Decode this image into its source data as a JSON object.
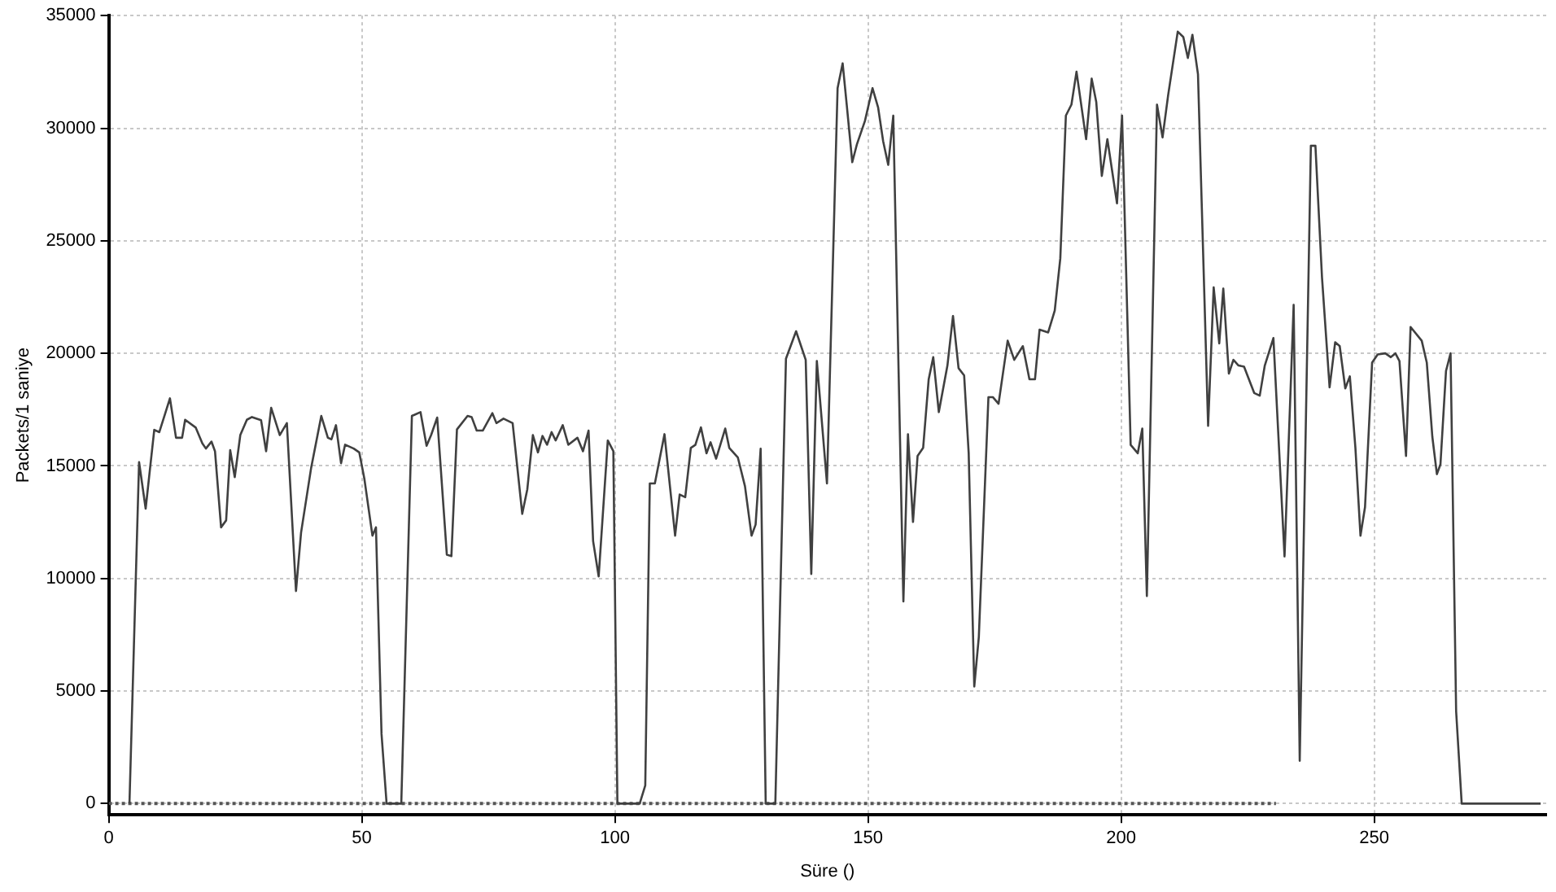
{
  "chart_data": {
    "type": "line",
    "xlabel": "Süre ()",
    "ylabel": "Packets/1 saniye",
    "xlim": [
      0,
      284
    ],
    "ylim": [
      -500,
      35000
    ],
    "xticks": [
      0,
      50,
      100,
      150,
      200,
      250
    ],
    "yticks": [
      0,
      5000,
      10000,
      15000,
      20000,
      25000,
      30000,
      35000
    ],
    "grid": true,
    "legend": false,
    "marker": "none",
    "series": [
      {
        "color": "#404040",
        "line_style": "solid",
        "x": [
          4.1,
          6.0,
          7.3,
          9.0,
          10.0,
          12.1,
          13.3,
          14.5,
          15.1,
          17.2,
          18.5,
          19.2,
          20.3,
          21.0,
          22.2,
          23.2,
          24.0,
          24.9,
          26.0,
          27.3,
          28.3,
          30.1,
          31.1,
          32.1,
          33.8,
          35.2,
          37.0,
          38.0,
          40.0,
          42.0,
          43.3,
          44.0,
          44.9,
          45.9,
          46.7,
          48.4,
          49.5,
          50.5,
          52.1,
          52.8,
          53.9,
          54.9,
          57.8,
          59.9,
          61.6,
          62.8,
          63.7,
          64.9,
          66.8,
          67.7,
          68.8,
          70.9,
          71.7,
          72.7,
          73.9,
          75.8,
          76.6,
          78.0,
          79.8,
          81.7,
          82.7,
          83.8,
          84.8,
          85.7,
          86.6,
          87.5,
          88.3,
          89.7,
          90.8,
          92.6,
          93.7,
          94.8,
          95.7,
          96.8,
          98.6,
          99.7,
          100.5,
          104.9,
          106.0,
          106.9,
          107.9,
          109.8,
          111.9,
          112.8,
          113.9,
          115.0,
          115.9,
          117.0,
          118.1,
          118.9,
          120.0,
          121.8,
          122.6,
          124.3,
          125.7,
          127.0,
          127.8,
          128.8,
          129.8,
          131.7,
          133.8,
          135.8,
          137.7,
          138.8,
          139.9,
          141.9,
          144.0,
          145.0,
          145.8,
          146.9,
          147.8,
          149.4,
          150.9,
          152.0,
          153.0,
          154.0,
          155.0,
          157.0,
          157.9,
          158.9,
          159.8,
          160.9,
          162.0,
          162.9,
          164.0,
          165.7,
          166.8,
          167.9,
          169.0,
          169.9,
          171.0,
          171.9,
          173.8,
          174.7,
          175.8,
          177.6,
          178.9,
          180.6,
          181.9,
          183.0,
          183.9,
          185.6,
          186.9,
          188.0,
          189.1,
          190.2,
          191.2,
          193.1,
          194.2,
          195.1,
          196.2,
          197.3,
          199.2,
          200.2,
          201.9,
          203.3,
          204.2,
          205.1,
          207.1,
          208.2,
          209.3,
          211.2,
          212.3,
          213.2,
          214.1,
          215.2,
          217.2,
          218.3,
          219.4,
          220.2,
          221.3,
          222.2,
          223.2,
          224.3,
          226.3,
          227.4,
          228.4,
          230.1,
          232.3,
          234.1,
          235.3,
          237.5,
          238.4,
          239.7,
          241.2,
          242.3,
          243.2,
          244.3,
          245.2,
          246.3,
          247.3,
          248.2,
          249.6,
          250.7,
          252.2,
          253.3,
          254.2,
          255.0,
          256.3,
          257.2,
          259.4,
          260.4,
          261.5,
          262.4,
          263.1,
          264.2,
          265.1,
          266.2,
          267.3,
          282.9
        ],
        "values": [
          0,
          15170,
          13100,
          16600,
          16500,
          18000,
          16250,
          16250,
          17050,
          16700,
          16000,
          15770,
          16080,
          15650,
          12270,
          12580,
          15700,
          14500,
          16370,
          17050,
          17170,
          17030,
          15650,
          17580,
          16370,
          16900,
          9440,
          12030,
          14920,
          17220,
          16250,
          16180,
          16810,
          15120,
          15940,
          15770,
          15600,
          14440,
          11900,
          12270,
          3090,
          0,
          0,
          17220,
          17390,
          15890,
          16370,
          17150,
          11060,
          10990,
          16620,
          17220,
          17170,
          16570,
          16570,
          17340,
          16900,
          17100,
          16900,
          12870,
          13960,
          16370,
          15600,
          16330,
          15940,
          16500,
          16130,
          16810,
          15940,
          16250,
          15650,
          16570,
          11660,
          10090,
          16130,
          15650,
          0,
          0,
          800,
          14220,
          14220,
          16410,
          11900,
          13730,
          13610,
          15800,
          15930,
          16710,
          15560,
          16050,
          15320,
          16660,
          15800,
          15370,
          14100,
          11900,
          12390,
          15760,
          0,
          0,
          19760,
          20980,
          19710,
          10200,
          19660,
          14220,
          31780,
          32880,
          31050,
          28490,
          29270,
          30320,
          31780,
          30930,
          29420,
          28370,
          30560,
          8980,
          16410,
          12510,
          15440,
          15800,
          18850,
          19830,
          17390,
          19460,
          21660,
          19340,
          19020,
          15560,
          5200,
          7390,
          18050,
          18050,
          17760,
          20560,
          19710,
          20320,
          18850,
          18850,
          21050,
          20930,
          21900,
          24220,
          30560,
          31050,
          32510,
          29510,
          32200,
          31170,
          27880,
          29510,
          26660,
          30560,
          15930,
          15560,
          16660,
          9220,
          31050,
          29590,
          31460,
          34290,
          34050,
          33120,
          34150,
          32390,
          16780,
          22930,
          20440,
          22880,
          19100,
          19710,
          19460,
          19410,
          18240,
          18120,
          19460,
          20680,
          10980,
          22150,
          1900,
          29220,
          29220,
          23370,
          18490,
          20490,
          20320,
          18440,
          18980,
          15800,
          11900,
          13170,
          19590,
          19950,
          20000,
          19830,
          20000,
          19660,
          15440,
          21170,
          20560,
          19590,
          16290,
          14630,
          15070,
          19220,
          20000,
          4100,
          0,
          0
        ]
      },
      {
        "color": "#555555",
        "line_style": "dotted",
        "x": [
          0,
          230.6
        ],
        "values": [
          0,
          0
        ]
      }
    ]
  }
}
